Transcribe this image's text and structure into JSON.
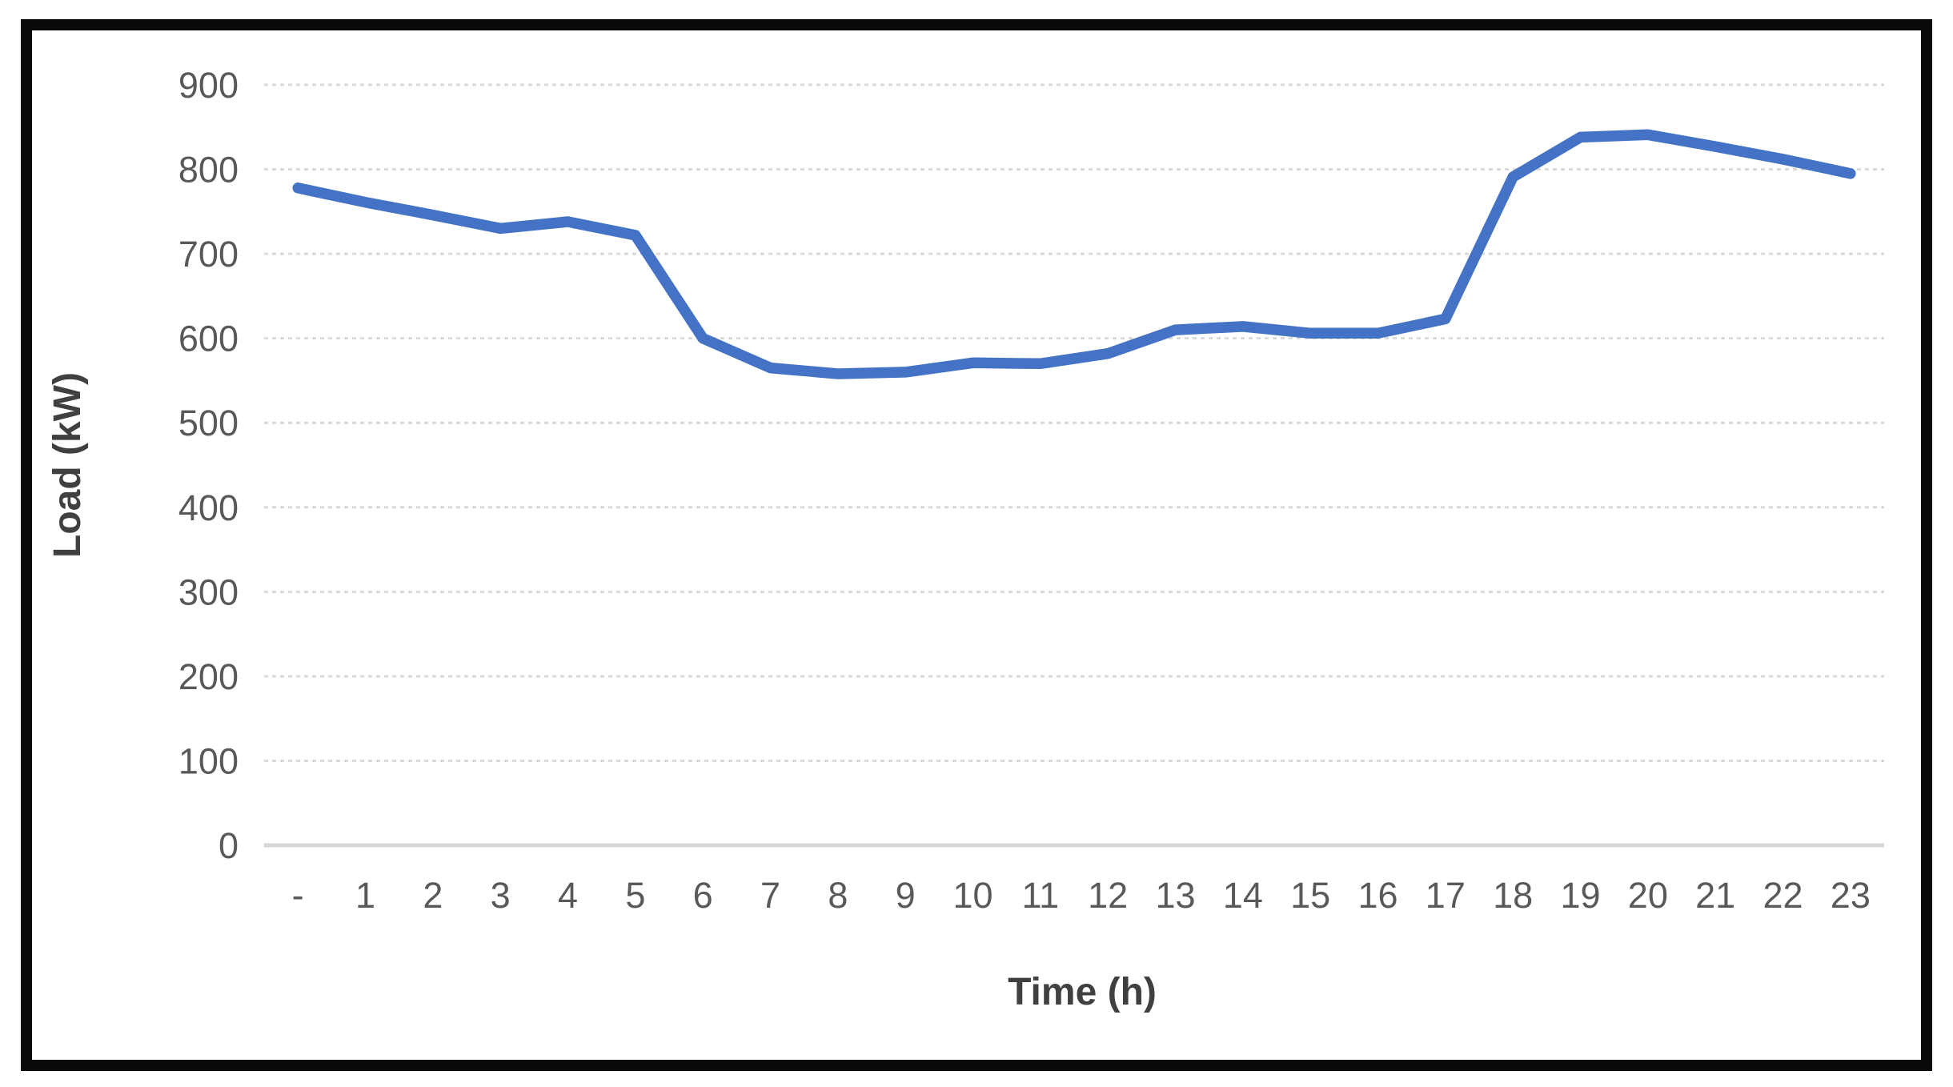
{
  "chart_data": {
    "type": "line",
    "title": "",
    "xlabel": "Time (h)",
    "ylabel": "Load (kW)",
    "categories": [
      "-",
      "1",
      "2",
      "3",
      "4",
      "5",
      "6",
      "7",
      "8",
      "9",
      "10",
      "11",
      "12",
      "13",
      "14",
      "15",
      "16",
      "17",
      "18",
      "19",
      "20",
      "21",
      "22",
      "23"
    ],
    "series": [
      {
        "name": "Load",
        "color": "#4472C4",
        "values": [
          778,
          761,
          746,
          730,
          738,
          722,
          600,
          565,
          558,
          560,
          571,
          570,
          582,
          610,
          614,
          606,
          606,
          623,
          791,
          838,
          841,
          827,
          812,
          795
        ]
      }
    ],
    "ylim": [
      0,
      900
    ],
    "yticks": [
      0,
      100,
      200,
      300,
      400,
      500,
      600,
      700,
      800,
      900
    ],
    "grid": true,
    "legend": "none",
    "gridline_color": "#D9D9D9",
    "zero_line_color": "#D6D6D6",
    "tick_label_color": "#595959",
    "axis_title_color": "#404040",
    "frame_border_color": "#0a0a0a",
    "background_color": "#ffffff"
  }
}
